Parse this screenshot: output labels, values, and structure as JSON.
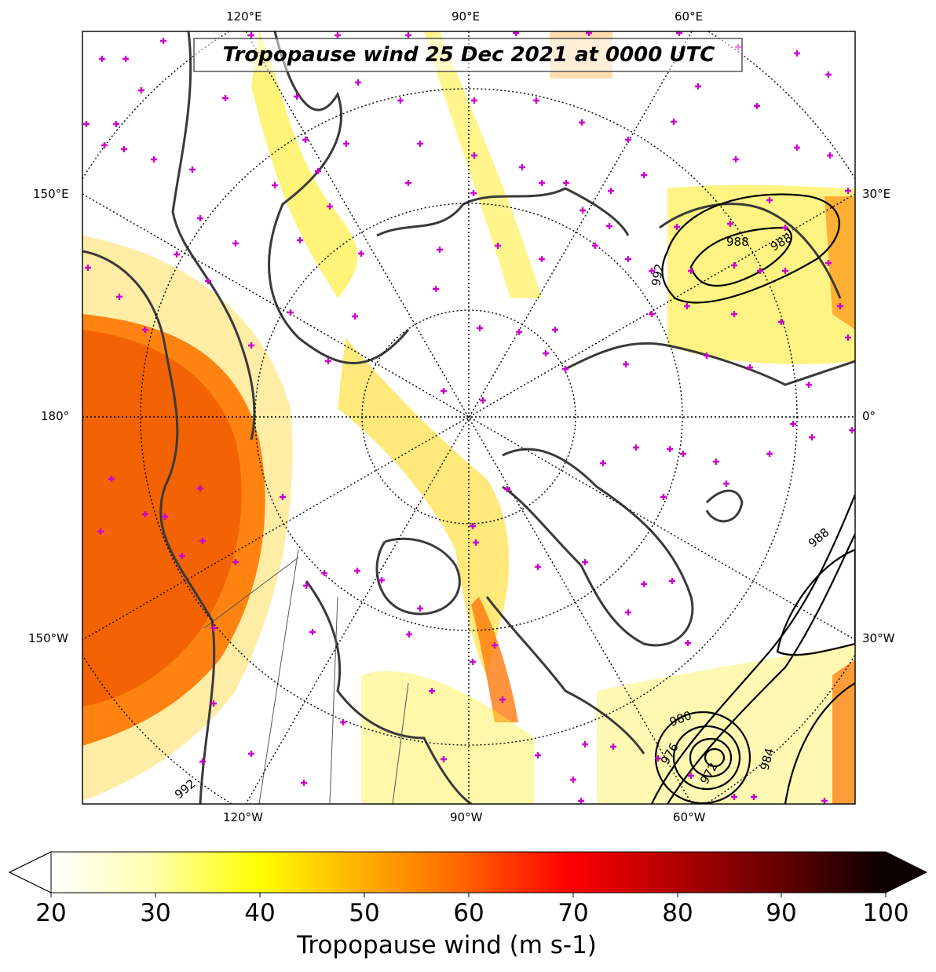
{
  "map": {
    "title": "Tropopause wind 25 Dec 2021 at 0000 UTC",
    "projection": "north-polar-stereographic",
    "top_labels": [
      "120°E",
      "90°E",
      "60°E"
    ],
    "bottom_labels": [
      "120°W",
      "90°W",
      "60°W"
    ],
    "left_labels": [
      "150°E",
      "180°",
      "150°W"
    ],
    "right_labels": [
      "30°E",
      "0°",
      "30°W"
    ],
    "contour_labels": [
      "992",
      "988",
      "988",
      "988",
      "980",
      "976",
      "984",
      "972",
      "992"
    ],
    "marker_color": "#cc00cc",
    "coastline_color": "#3a3a3a"
  },
  "colorbar": {
    "ticks": [
      "20",
      "30",
      "40",
      "50",
      "60",
      "70",
      "80",
      "90",
      "100"
    ],
    "label": "Tropopause wind (m s-1)",
    "colormap": "hot_r",
    "extend": "both",
    "range": [
      20,
      100
    ]
  }
}
